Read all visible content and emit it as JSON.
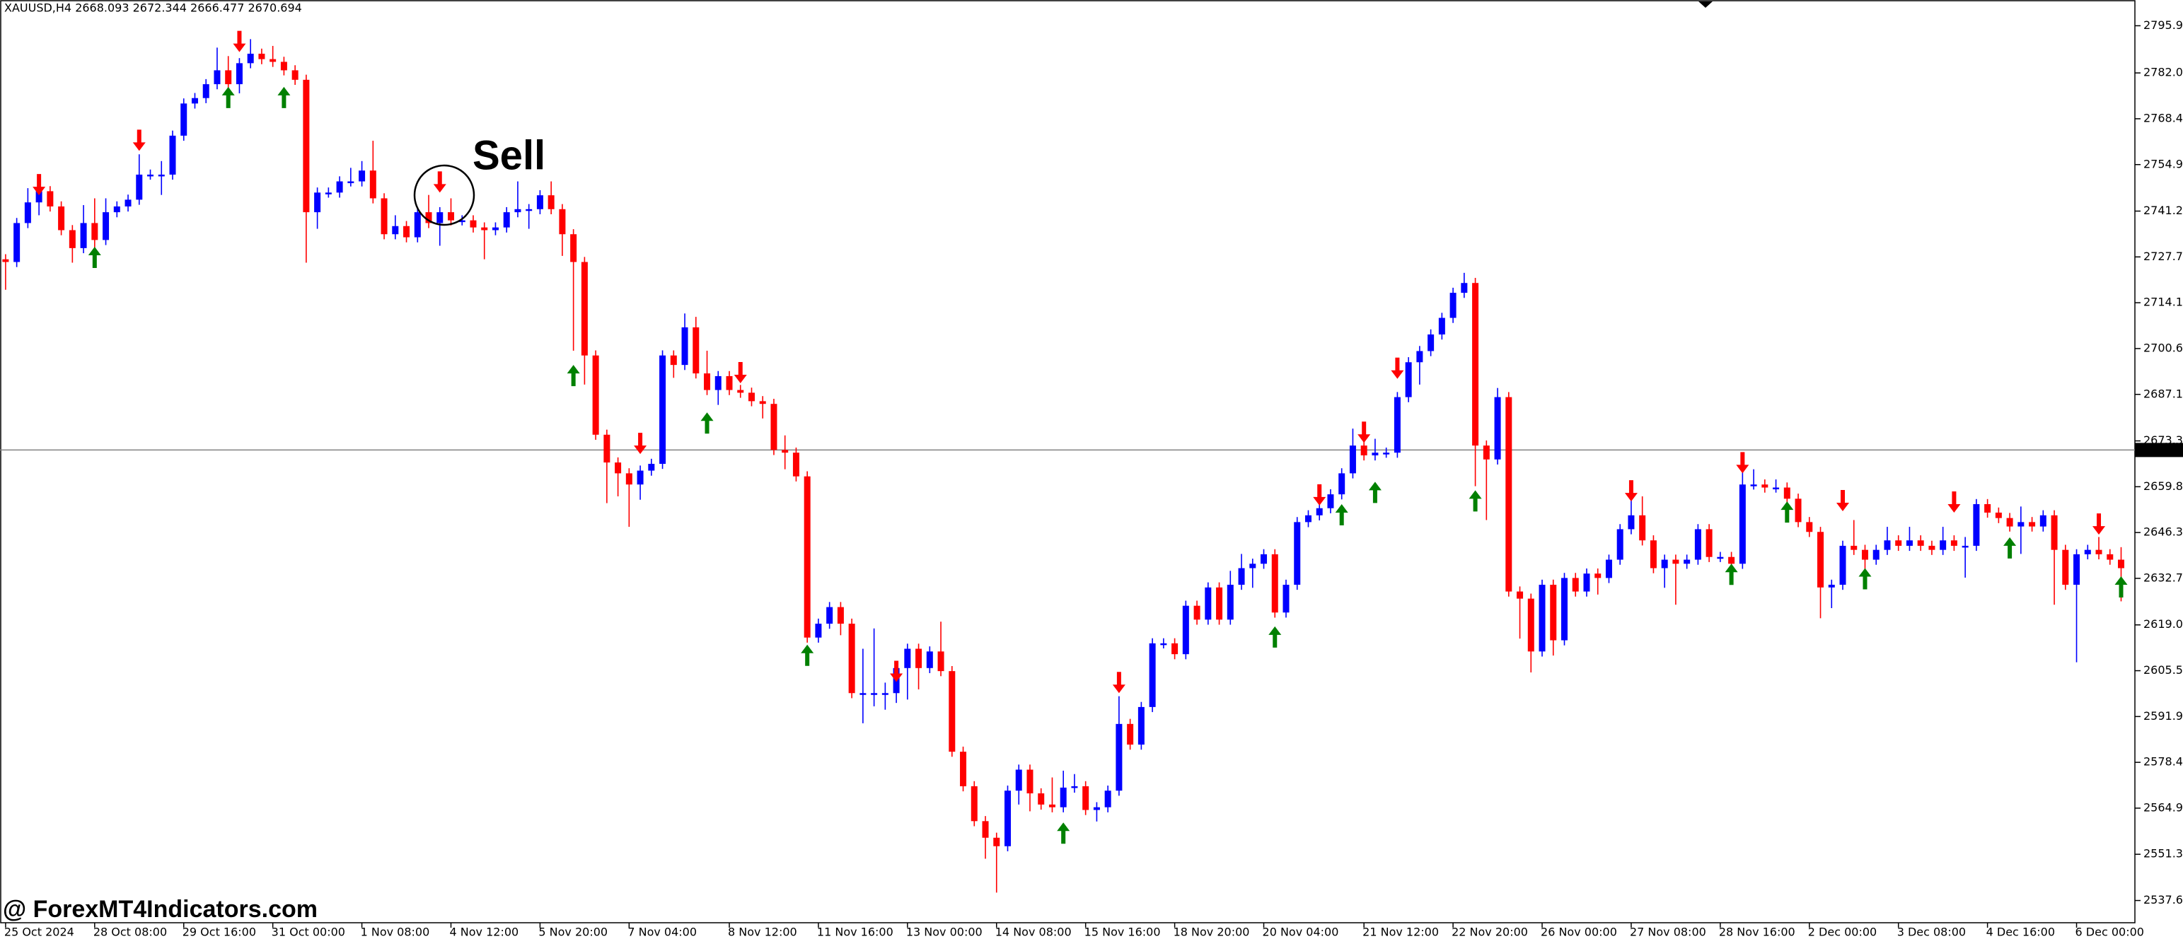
{
  "chart_data": {
    "type": "candlestick",
    "title": "XAUUSD,H4  2668.093 2672.344 2666.477 2670.694",
    "up_color": "#0000ff",
    "down_color": "#ff0000",
    "grid": false,
    "ylim": [
      2531.1,
      2803.35
    ],
    "yticks": [
      2795.955,
      2782.025,
      2768.495,
      2754.965,
      {
        "value": 2741.23,
        "label": "2741.230"
      },
      {
        "value": 2727.7,
        "label": "2727.700"
      },
      {
        "value": 2714.17,
        "label": "2714.170"
      },
      {
        "value": 2700.64,
        "label": "2700.640"
      },
      {
        "value": 2687.11,
        "label": "2687.110"
      },
      2673.375,
      2659.845,
      2646.315,
      2632.785,
      {
        "value": 2619.05,
        "label": "2619.050"
      },
      {
        "value": 2605.52,
        "label": "2605.520"
      },
      {
        "value": 2591.99,
        "label": "2591.990"
      },
      {
        "value": 2578.46,
        "label": "2578.460"
      },
      2564.935,
      2551.315,
      2537.665
    ],
    "price_line": 2670.694,
    "price_line_color": "#808080",
    "categories": [
      "25 Oct 2024",
      null,
      null,
      null,
      null,
      null,
      null,
      null,
      "28 Oct 08:00",
      null,
      null,
      null,
      null,
      null,
      null,
      null,
      "29 Oct 16:00",
      null,
      null,
      null,
      null,
      null,
      null,
      null,
      "31 Oct 00:00",
      null,
      null,
      null,
      null,
      null,
      null,
      null,
      "1 Nov 08:00",
      null,
      null,
      null,
      null,
      null,
      null,
      null,
      "4 Nov 12:00",
      null,
      null,
      null,
      null,
      null,
      null,
      null,
      "5 Nov 20:00",
      null,
      null,
      null,
      null,
      null,
      null,
      null,
      "7 Nov 04:00",
      null,
      null,
      null,
      null,
      null,
      null,
      null,
      null,
      "8 Nov 12:00",
      null,
      null,
      null,
      null,
      null,
      null,
      null,
      "11 Nov 16:00",
      null,
      null,
      null,
      null,
      null,
      null,
      null,
      "13 Nov 00:00",
      null,
      null,
      null,
      null,
      null,
      null,
      null,
      "14 Nov 08:00",
      null,
      null,
      null,
      null,
      null,
      null,
      null,
      "15 Nov 16:00",
      null,
      null,
      null,
      null,
      null,
      null,
      null,
      "18 Nov 20:00",
      null,
      null,
      null,
      null,
      null,
      null,
      null,
      "20 Nov 04:00",
      null,
      null,
      null,
      null,
      null,
      null,
      null,
      null,
      "21 Nov 12:00",
      null,
      null,
      null,
      null,
      null,
      null,
      null,
      "22 Nov 20:00",
      null,
      null,
      null,
      null,
      null,
      null,
      null,
      "26 Nov 00:00",
      null,
      null,
      null,
      null,
      null,
      null,
      null,
      "27 Nov 08:00",
      null,
      null,
      null,
      null,
      null,
      null,
      null,
      "28 Nov 16:00",
      null,
      null,
      null,
      null,
      null,
      null,
      null,
      "2 Dec 00:00",
      null,
      null,
      null,
      null,
      null,
      null,
      null,
      "3 Dec 08:00",
      null,
      null,
      null,
      null,
      null,
      null,
      null,
      "4 Dec 16:00",
      null,
      null,
      null,
      null,
      null,
      null,
      null,
      "6 Dec 00:00",
      null,
      null,
      null,
      null
    ],
    "open": [
      2727.0,
      2726.2,
      2737.7,
      2743.8,
      2747.1,
      2742.6,
      2735.6,
      2730.3,
      2737.7,
      2732.7,
      2740.9,
      2742.6,
      2744.6,
      2752.0,
      2752.0,
      2752.0,
      2763.5,
      2773.0,
      2774.6,
      2778.7,
      2782.8,
      2778.7,
      2784.9,
      2787.7,
      2786.1,
      2785.3,
      2782.8,
      2780.0,
      2740.9,
      2746.7,
      2746.7,
      2750.0,
      2750.0,
      2753.2,
      2745.0,
      2734.4,
      2736.8,
      2733.5,
      2740.9,
      2737.7,
      2740.9,
      2738.5,
      2738.5,
      2736.4,
      2735.6,
      2736.4,
      2740.9,
      2741.8,
      2741.8,
      2745.9,
      2741.8,
      2734.4,
      2726.2,
      2698.6,
      2675.2,
      2667.0,
      2663.8,
      2660.5,
      2664.6,
      2666.6,
      2698.6,
      2695.8,
      2706.9,
      2693.3,
      2688.4,
      2692.5,
      2688.4,
      2687.6,
      2685.1,
      2684.3,
      2670.7,
      2669.9,
      2662.9,
      2615.3,
      2619.4,
      2624.3,
      2619.4,
      2598.9,
      2598.9,
      2598.9,
      2598.9,
      2606.3,
      2612.0,
      2606.3,
      2611.2,
      2605.4,
      2581.6,
      2571.4,
      2561.1,
      2556.2,
      2553.7,
      2570.1,
      2576.3,
      2569.3,
      2566.0,
      2565.2,
      2571.0,
      2571.4,
      2564.4,
      2565.2,
      2570.1,
      2589.8,
      2583.7,
      2594.8,
      2613.6,
      2613.6,
      2610.4,
      2624.7,
      2620.6,
      2630.1,
      2620.6,
      2630.9,
      2635.8,
      2637.1,
      2639.9,
      2622.7,
      2630.9,
      2649.4,
      2651.4,
      2653.5,
      2657.6,
      2663.8,
      2672.0,
      2669.1,
      2669.9,
      2669.9,
      2686.3,
      2696.6,
      2699.9,
      2704.8,
      2709.7,
      2717.1,
      2720.0,
      2672.0,
      2667.9,
      2686.3,
      2628.9,
      2626.8,
      2611.2,
      2630.9,
      2614.5,
      2632.9,
      2628.9,
      2634.2,
      2632.9,
      2638.3,
      2647.3,
      2651.4,
      2644.0,
      2635.8,
      2638.3,
      2637.1,
      2638.3,
      2647.3,
      2639.1,
      2639.1,
      2637.1,
      2660.5,
      2660.5,
      2659.6,
      2659.6,
      2656.3,
      2649.4,
      2646.5,
      2630.1,
      2630.9,
      2642.4,
      2641.2,
      2638.3,
      2641.2,
      2644.0,
      2642.4,
      2644.0,
      2642.4,
      2641.2,
      2644.0,
      2642.4,
      2642.4,
      2654.7,
      2652.2,
      2650.6,
      2648.1,
      2649.4,
      2648.1,
      2651.4,
      2641.2,
      2630.9,
      2639.9,
      2641.2,
      2639.9,
      2638.3
    ],
    "high": [
      2728.5,
      2739.2,
      2748.0,
      2748.6,
      2748.6,
      2744.1,
      2737.1,
      2743.0,
      2745.0,
      2745.0,
      2744.1,
      2746.1,
      2758.0,
      2753.5,
      2756.0,
      2765.0,
      2774.5,
      2776.1,
      2780.2,
      2789.5,
      2787.0,
      2786.4,
      2792.0,
      2789.2,
      2790.0,
      2786.8,
      2784.3,
      2781.5,
      2748.2,
      2748.2,
      2751.5,
      2754.0,
      2756.0,
      2762.0,
      2746.5,
      2740.0,
      2738.3,
      2742.4,
      2746.0,
      2742.4,
      2745.0,
      2740.0,
      2740.0,
      2737.9,
      2737.9,
      2742.4,
      2750.0,
      2743.3,
      2747.4,
      2750.0,
      2743.3,
      2735.9,
      2727.7,
      2700.1,
      2676.7,
      2668.5,
      2665.3,
      2666.1,
      2668.1,
      2700.1,
      2700.1,
      2711.0,
      2710.0,
      2700.0,
      2694.0,
      2694.0,
      2689.9,
      2689.1,
      2686.6,
      2685.8,
      2675.0,
      2671.4,
      2664.4,
      2620.9,
      2625.8,
      2625.8,
      2620.9,
      2612.0,
      2618.0,
      2602.0,
      2607.8,
      2613.5,
      2613.5,
      2612.7,
      2620.0,
      2606.9,
      2583.1,
      2572.9,
      2562.6,
      2557.7,
      2571.6,
      2577.8,
      2577.8,
      2570.8,
      2574.0,
      2576.0,
      2575.0,
      2572.9,
      2566.7,
      2571.6,
      2598.0,
      2591.3,
      2596.3,
      2615.1,
      2615.1,
      2615.1,
      2626.2,
      2626.2,
      2631.6,
      2631.6,
      2635.0,
      2640.0,
      2638.6,
      2641.4,
      2641.4,
      2632.4,
      2650.9,
      2652.9,
      2655.0,
      2659.1,
      2665.3,
      2677.0,
      2673.5,
      2674.0,
      2671.4,
      2687.8,
      2698.1,
      2701.4,
      2706.3,
      2711.2,
      2718.6,
      2723.0,
      2721.5,
      2673.5,
      2689.0,
      2687.8,
      2630.4,
      2628.3,
      2632.4,
      2632.4,
      2634.4,
      2634.4,
      2635.7,
      2635.7,
      2639.8,
      2648.8,
      2657.0,
      2657.0,
      2645.5,
      2639.8,
      2639.8,
      2639.8,
      2648.8,
      2648.8,
      2640.6,
      2640.6,
      2665.0,
      2665.0,
      2662.0,
      2662.0,
      2661.1,
      2657.8,
      2650.9,
      2648.0,
      2632.4,
      2643.9,
      2650.0,
      2642.7,
      2642.7,
      2648.0,
      2645.5,
      2648.0,
      2645.5,
      2643.9,
      2648.0,
      2645.5,
      2645.0,
      2656.2,
      2656.2,
      2653.7,
      2652.1,
      2654.0,
      2650.9,
      2652.9,
      2652.9,
      2642.7,
      2641.4,
      2642.7,
      2645.0,
      2641.4,
      2642.0
    ],
    "low": [
      2718.0,
      2724.7,
      2736.2,
      2740.0,
      2741.1,
      2734.1,
      2726.0,
      2728.8,
      2728.0,
      2731.2,
      2739.4,
      2741.1,
      2743.1,
      2750.5,
      2746.0,
      2750.5,
      2762.0,
      2771.5,
      2773.1,
      2777.2,
      2777.2,
      2776.0,
      2783.4,
      2784.6,
      2783.8,
      2781.3,
      2778.5,
      2726.0,
      2736.0,
      2745.2,
      2745.2,
      2748.5,
      2748.5,
      2743.5,
      2732.9,
      2732.9,
      2732.0,
      2732.0,
      2736.2,
      2731.0,
      2737.0,
      2737.0,
      2734.9,
      2727.0,
      2734.1,
      2734.9,
      2739.4,
      2736.0,
      2740.3,
      2740.3,
      2728.0,
      2700.0,
      2690.0,
      2673.7,
      2655.0,
      2657.0,
      2648.0,
      2656.0,
      2663.1,
      2665.1,
      2692.0,
      2694.3,
      2691.8,
      2686.9,
      2684.0,
      2686.9,
      2686.1,
      2683.6,
      2680.0,
      2669.2,
      2665.0,
      2661.4,
      2613.8,
      2613.8,
      2617.9,
      2616.0,
      2597.4,
      2590.0,
      2595.0,
      2594.0,
      2596.0,
      2597.0,
      2600.0,
      2604.8,
      2603.9,
      2580.1,
      2569.9,
      2559.6,
      2550.0,
      2540.0,
      2552.2,
      2566.0,
      2564.0,
      2564.5,
      2563.7,
      2563.7,
      2569.5,
      2562.9,
      2561.0,
      2563.7,
      2568.6,
      2582.2,
      2582.2,
      2593.3,
      2612.1,
      2608.9,
      2608.9,
      2619.1,
      2619.1,
      2619.1,
      2619.1,
      2629.4,
      2630.0,
      2635.6,
      2621.2,
      2621.2,
      2629.4,
      2647.9,
      2649.9,
      2652.0,
      2656.1,
      2662.3,
      2667.6,
      2667.6,
      2668.4,
      2668.4,
      2684.8,
      2690.0,
      2698.4,
      2703.3,
      2708.2,
      2715.6,
      2660.0,
      2650.0,
      2666.4,
      2627.4,
      2615.0,
      2605.0,
      2609.7,
      2610.0,
      2613.0,
      2627.4,
      2627.4,
      2628.0,
      2631.4,
      2636.8,
      2645.8,
      2642.5,
      2634.3,
      2630.0,
      2625.0,
      2635.6,
      2636.8,
      2637.6,
      2637.6,
      2635.6,
      2635.6,
      2659.0,
      2658.1,
      2658.1,
      2652.0,
      2647.9,
      2645.0,
      2621.0,
      2624.0,
      2629.4,
      2639.7,
      2634.0,
      2636.8,
      2639.7,
      2640.9,
      2640.9,
      2640.9,
      2639.7,
      2639.7,
      2640.9,
      2633.0,
      2640.9,
      2650.7,
      2649.1,
      2646.6,
      2640.0,
      2646.6,
      2646.6,
      2625.0,
      2629.4,
      2608.0,
      2638.4,
      2638.4,
      2636.8,
      2626.0
    ],
    "close": [
      2726.2,
      2737.7,
      2743.8,
      2747.1,
      2742.6,
      2735.6,
      2730.3,
      2737.7,
      2732.7,
      2740.9,
      2742.6,
      2744.6,
      2752.0,
      2752.0,
      2752.0,
      2763.5,
      2773.0,
      2774.6,
      2778.7,
      2782.8,
      2778.7,
      2784.9,
      2787.7,
      2786.1,
      2785.3,
      2782.8,
      2780.0,
      2740.9,
      2746.7,
      2746.7,
      2750.0,
      2750.0,
      2753.2,
      2745.0,
      2734.4,
      2736.8,
      2733.5,
      2740.9,
      2737.7,
      2740.9,
      2738.5,
      2738.5,
      2736.4,
      2735.6,
      2736.4,
      2740.9,
      2741.8,
      2741.8,
      2745.9,
      2741.8,
      2734.4,
      2726.2,
      2698.6,
      2675.2,
      2667.0,
      2663.8,
      2660.5,
      2664.6,
      2666.6,
      2698.6,
      2695.8,
      2706.9,
      2693.3,
      2688.4,
      2692.5,
      2688.4,
      2687.6,
      2685.1,
      2684.3,
      2670.7,
      2669.9,
      2662.9,
      2615.3,
      2619.4,
      2624.3,
      2619.4,
      2598.9,
      2598.9,
      2598.9,
      2598.9,
      2606.3,
      2612.0,
      2606.3,
      2611.2,
      2605.4,
      2581.6,
      2571.4,
      2561.1,
      2556.2,
      2553.7,
      2570.1,
      2576.3,
      2569.3,
      2566.0,
      2565.2,
      2571.0,
      2571.4,
      2564.4,
      2565.2,
      2570.1,
      2589.8,
      2583.7,
      2594.8,
      2613.6,
      2613.6,
      2610.4,
      2624.7,
      2620.6,
      2630.1,
      2620.6,
      2630.9,
      2635.8,
      2637.1,
      2639.9,
      2622.7,
      2630.9,
      2649.4,
      2651.4,
      2653.5,
      2657.6,
      2663.8,
      2672.0,
      2669.1,
      2669.9,
      2669.9,
      2686.3,
      2696.6,
      2699.9,
      2704.8,
      2709.7,
      2717.1,
      2720.0,
      2672.0,
      2667.9,
      2686.3,
      2628.9,
      2626.8,
      2611.2,
      2630.9,
      2614.5,
      2632.9,
      2628.9,
      2634.2,
      2632.9,
      2638.3,
      2647.3,
      2651.4,
      2644.0,
      2635.8,
      2638.3,
      2637.1,
      2638.3,
      2647.3,
      2639.1,
      2639.1,
      2637.1,
      2660.5,
      2660.5,
      2659.6,
      2659.6,
      2656.3,
      2649.4,
      2646.5,
      2630.1,
      2630.9,
      2642.4,
      2641.2,
      2638.3,
      2641.2,
      2644.0,
      2642.4,
      2644.0,
      2642.4,
      2641.2,
      2644.0,
      2642.4,
      2642.4,
      2654.7,
      2652.2,
      2650.6,
      2648.1,
      2649.4,
      2648.1,
      2651.4,
      2641.2,
      2630.9,
      2639.9,
      2641.2,
      2639.9,
      2638.3,
      2635.8
    ],
    "sell_color": "#ff0000",
    "buy_color": "#008000",
    "sell_signals": [
      {
        "index": 3,
        "price": 2745.9
      },
      {
        "index": 12,
        "price": 2759.0
      },
      {
        "index": 21,
        "price": 2788.2
      },
      {
        "index": 39,
        "price": 2746.7
      },
      {
        "index": 57,
        "price": 2669.5
      },
      {
        "index": 66,
        "price": 2690.4
      },
      {
        "index": 80,
        "price": 2602.2
      },
      {
        "index": 100,
        "price": 2598.9
      },
      {
        "index": 118,
        "price": 2654.3
      },
      {
        "index": 122,
        "price": 2672.8
      },
      {
        "index": 125,
        "price": 2691.7
      },
      {
        "index": 146,
        "price": 2655.5
      },
      {
        "index": 156,
        "price": 2663.8
      },
      {
        "index": 165,
        "price": 2652.6
      },
      {
        "index": 175,
        "price": 2652.2
      },
      {
        "index": 188,
        "price": 2645.7
      }
    ],
    "buy_signals": [
      {
        "index": 8,
        "price": 2730.7
      },
      {
        "index": 20,
        "price": 2777.9
      },
      {
        "index": 25,
        "price": 2777.9
      },
      {
        "index": 51,
        "price": 2695.8
      },
      {
        "index": 63,
        "price": 2681.8
      },
      {
        "index": 72,
        "price": 2613.2
      },
      {
        "index": 95,
        "price": 2560.7
      },
      {
        "index": 114,
        "price": 2618.6
      },
      {
        "index": 120,
        "price": 2654.7
      },
      {
        "index": 123,
        "price": 2661.3
      },
      {
        "index": 132,
        "price": 2658.8
      },
      {
        "index": 155,
        "price": 2637.1
      },
      {
        "index": 160,
        "price": 2655.5
      },
      {
        "index": 167,
        "price": 2635.8
      },
      {
        "index": 180,
        "price": 2644.9
      },
      {
        "index": 190,
        "price": 2633.4
      }
    ],
    "annotation": "Sell",
    "watermark": "@ ForexMT4Indicators.com"
  }
}
